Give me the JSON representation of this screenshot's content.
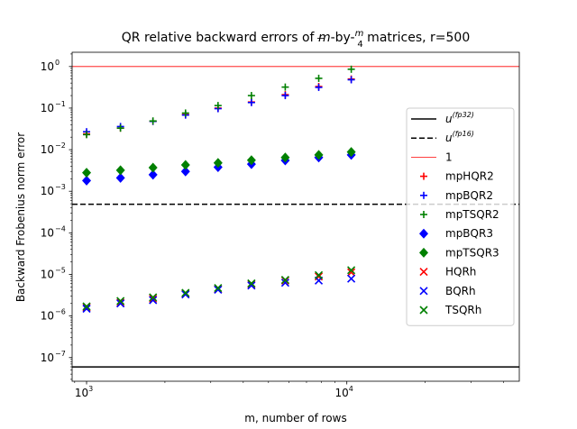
{
  "chart_data": {
    "type": "scatter",
    "title": "QR relative backward errors of m-by-m/4 matrices, r=500",
    "title_parts": {
      "prefix": "QR relative backward errors of ",
      "m": "m",
      "middle": "-by-",
      "frac_num": "m",
      "frac_den": "4",
      "suffix": " matrices, r=500"
    },
    "xlabel": "m, number of rows",
    "ylabel": "Backward Frobenius norm error",
    "xscale": "log",
    "yscale": "log",
    "xlim": [
      880,
      46000
    ],
    "ylim": [
      2.7e-08,
      2.2
    ],
    "x_ticks": [
      {
        "value": 1000,
        "base": "10",
        "exp": "3"
      },
      {
        "value": 10000,
        "base": "10",
        "exp": "4"
      }
    ],
    "y_ticks": [
      {
        "value": 1e-07,
        "base": "10",
        "exp": "−7"
      },
      {
        "value": 1e-06,
        "base": "10",
        "exp": "−6"
      },
      {
        "value": 1e-05,
        "base": "10",
        "exp": "−5"
      },
      {
        "value": 0.0001,
        "base": "10",
        "exp": "−4"
      },
      {
        "value": 0.001,
        "base": "10",
        "exp": "−3"
      },
      {
        "value": 0.01,
        "base": "10",
        "exp": "−2"
      },
      {
        "value": 0.1,
        "base": "10",
        "exp": "−1"
      },
      {
        "value": 1,
        "base": "10",
        "exp": "0"
      }
    ],
    "grid": false,
    "legend_position": "right",
    "x": [
      1000,
      1350,
      1800,
      2400,
      3200,
      4300,
      5800,
      7800,
      10400
    ],
    "reference_lines": [
      {
        "name": "u(fp32)",
        "label_base": "u",
        "label_sup": "(fp32)",
        "value": 5.96e-08,
        "style": "solid",
        "color": "#000000"
      },
      {
        "name": "u(fp16)",
        "label_base": "u",
        "label_sup": "(fp16)",
        "value": 0.000488,
        "style": "dashed",
        "color": "#000000"
      },
      {
        "name": "1",
        "label_base": "1",
        "label_sup": "",
        "value": 1,
        "style": "solid-thin",
        "color": "#ff0000"
      }
    ],
    "series": [
      {
        "name": "mpHQR2",
        "marker": "plus",
        "color": "#ff0000",
        "values": [
          0.024,
          0.033,
          0.048,
          0.07,
          0.1,
          0.14,
          0.21,
          0.33,
          0.5
        ]
      },
      {
        "name": "mpBQR2",
        "marker": "plus",
        "color": "#0000ff",
        "values": [
          0.027,
          0.036,
          0.048,
          0.068,
          0.097,
          0.136,
          0.2,
          0.315,
          0.48
        ]
      },
      {
        "name": "mpTSQR2",
        "marker": "plus",
        "color": "#008000",
        "values": [
          0.023,
          0.033,
          0.049,
          0.076,
          0.115,
          0.2,
          0.32,
          0.52,
          0.86
        ]
      },
      {
        "name": "mpBQR3",
        "marker": "diamond",
        "color": "#0000ff",
        "values": [
          0.0018,
          0.0021,
          0.0025,
          0.003,
          0.0038,
          0.0045,
          0.0055,
          0.0065,
          0.0075
        ]
      },
      {
        "name": "mpTSQR3",
        "marker": "diamond",
        "color": "#008000",
        "values": [
          0.0028,
          0.0032,
          0.0037,
          0.0043,
          0.0048,
          0.0056,
          0.0065,
          0.0075,
          0.0088
        ]
      },
      {
        "name": "HQRh",
        "marker": "x",
        "color": "#ff0000",
        "values": [
          1.6e-06,
          2.1e-06,
          2.6e-06,
          3.4e-06,
          4.4e-06,
          5.8e-06,
          7.1e-06,
          8.9e-06,
          1.12e-05
        ]
      },
      {
        "name": "BQRh",
        "marker": "x",
        "color": "#0000ff",
        "values": [
          1.5e-06,
          2e-06,
          2.4e-06,
          3.3e-06,
          4.3e-06,
          5.4e-06,
          6.3e-06,
          7.1e-06,
          7.9e-06
        ]
      },
      {
        "name": "TSQRh",
        "marker": "x",
        "color": "#008000",
        "values": [
          1.7e-06,
          2.3e-06,
          2.8e-06,
          3.6e-06,
          4.7e-06,
          6.1e-06,
          7.4e-06,
          9.6e-06,
          1.26e-05
        ]
      }
    ]
  }
}
